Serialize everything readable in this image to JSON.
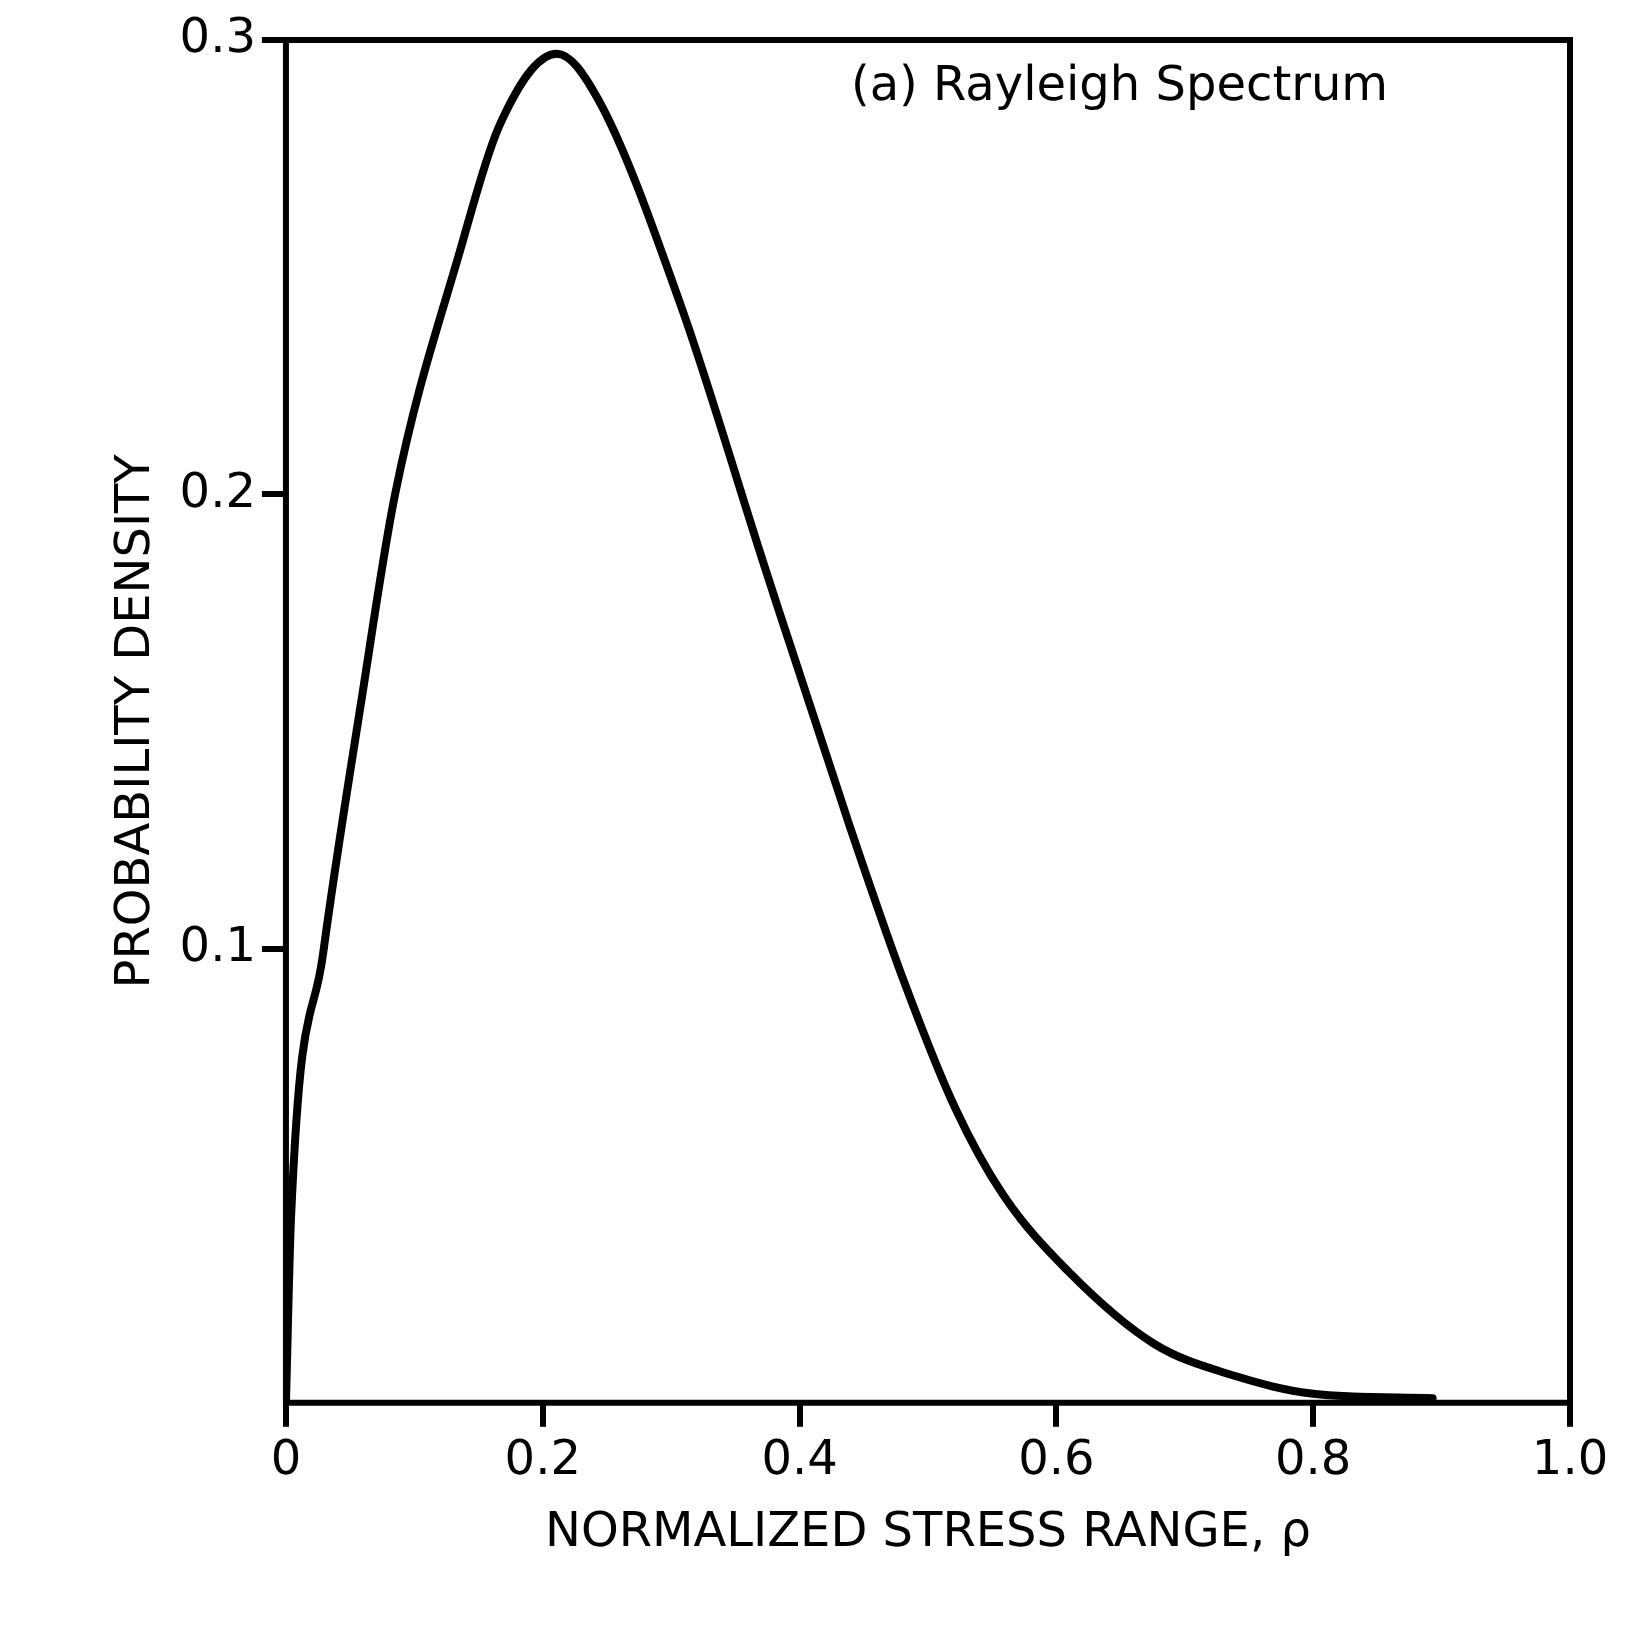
{
  "chart_data": {
    "type": "line",
    "xlabel": "NORMALIZED STRESS RANGE, ρ",
    "ylabel": "PROBABILITY DENSITY",
    "annotations": [
      "(a) Rayleigh Spectrum"
    ],
    "series": [
      {
        "color": "#000000",
        "x": [
          0,
          0.004,
          0.029,
          0.059,
          0.085,
          0.136,
          0.166,
          0.211,
          0.243,
          0.307,
          0.374,
          0.439,
          0.481,
          0.521,
          0.558,
          0.609,
          0.676,
          0.738,
          0.8,
          0.893
        ],
        "values": [
          0,
          0.041,
          0.099,
          0.155,
          0.2,
          0.254,
          0.281,
          0.297,
          0.287,
          0.242,
          0.183,
          0.127,
          0.093,
          0.065,
          0.046,
          0.029,
          0.013,
          0.006,
          0.002,
          0.001
        ]
      }
    ],
    "xlim": [
      0,
      1.0
    ],
    "xticks": [
      0,
      0.2,
      0.4,
      0.6,
      0.8,
      {
        "value": 1.0,
        "label": "1.0"
      }
    ],
    "ylim": [
      0,
      0.3
    ],
    "yticks": [
      0.1,
      0.2,
      0.3
    ],
    "grid": false,
    "legend": false,
    "marker": "none",
    "line_style": "solid"
  }
}
